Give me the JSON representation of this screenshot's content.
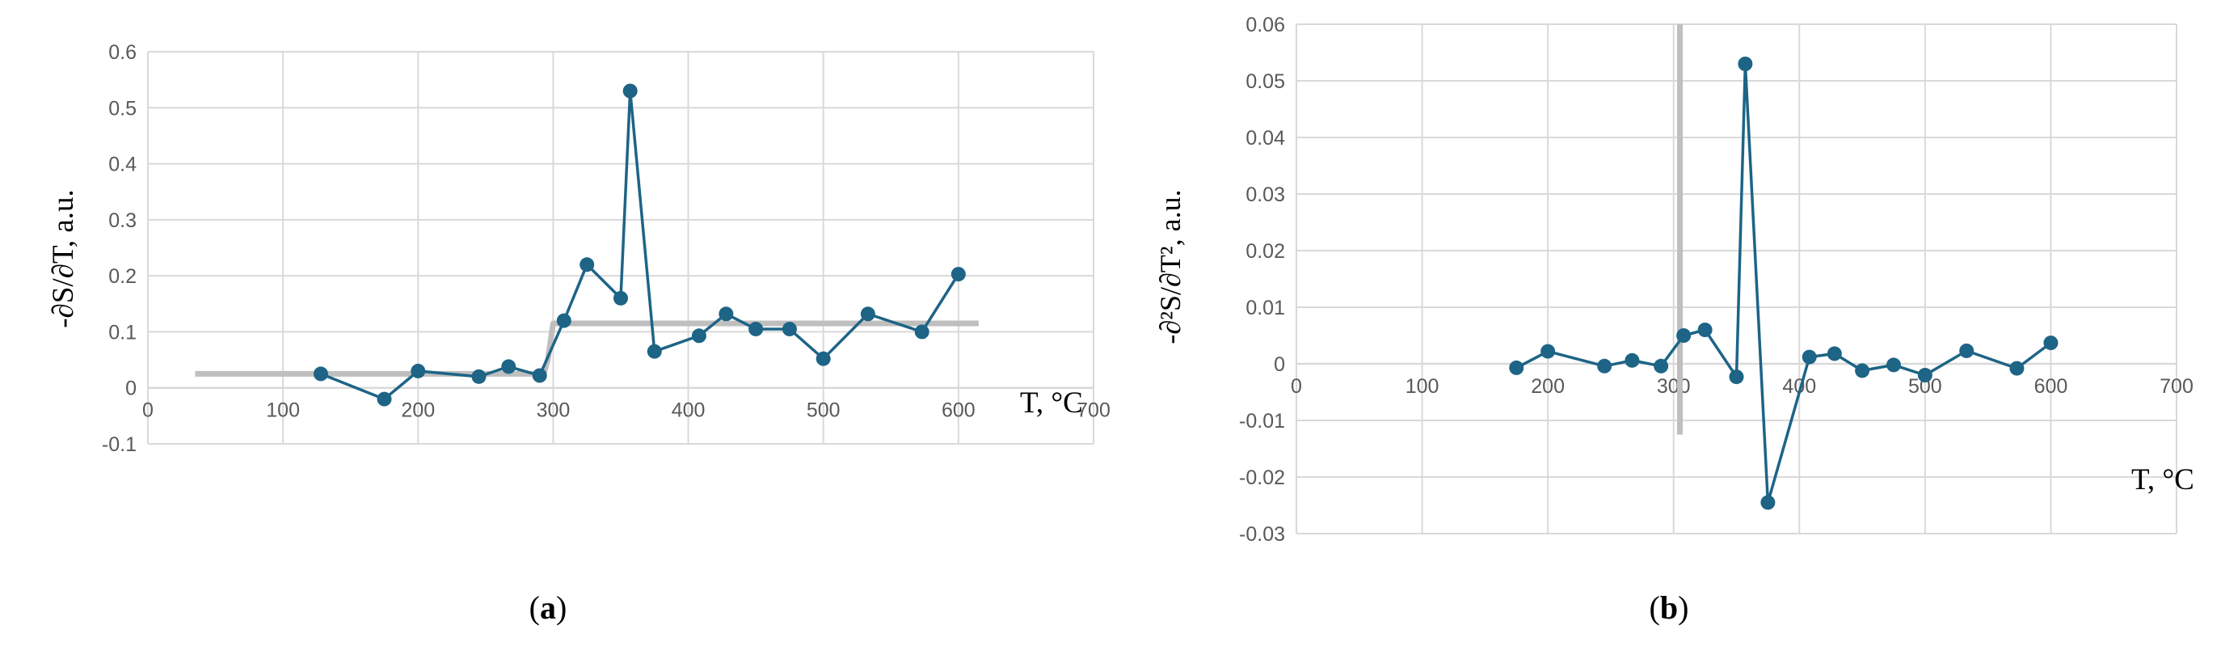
{
  "panels": [
    {
      "label_open": "(",
      "label_letter": "a",
      "label_close": ")"
    },
    {
      "label_open": "(",
      "label_letter": "b",
      "label_close": ")"
    }
  ],
  "colors": {
    "series": "#1d6486",
    "reference": "#bfbfbf",
    "grid": "#d9d9d9"
  },
  "chart_data": [
    {
      "type": "line",
      "xlim": [
        0,
        700
      ],
      "ylim": [
        -0.1,
        0.6
      ],
      "xticks": [
        "0",
        "100",
        "200",
        "300",
        "400",
        "500",
        "600",
        "700"
      ],
      "yticks": [
        "-0.1",
        "0",
        "0.1",
        "0.2",
        "0.3",
        "0.4",
        "0.5",
        "0.6"
      ],
      "ylabel": "-∂S/∂T, a.u.",
      "xlabel": "T, °C",
      "grid": true,
      "series": [
        {
          "x": [
            128,
            175,
            200,
            245,
            267,
            290,
            308,
            325,
            350,
            357,
            375,
            408,
            428,
            450,
            475,
            500,
            533,
            573,
            600
          ],
          "y": [
            0.025,
            -0.02,
            0.03,
            0.02,
            0.038,
            0.022,
            0.12,
            0.22,
            0.16,
            0.53,
            0.065,
            0.093,
            0.132,
            0.105,
            0.105,
            0.052,
            0.132,
            0.1,
            0.203
          ]
        }
      ],
      "reference_line": {
        "x": [
          35,
          293,
          296,
          300,
          615
        ],
        "y": [
          0.025,
          0.025,
          0.05,
          0.115,
          0.115
        ]
      }
    },
    {
      "type": "line",
      "xlim": [
        0,
        700
      ],
      "ylim": [
        -0.03,
        0.06
      ],
      "xticks": [
        "0",
        "100",
        "200",
        "300",
        "400",
        "500",
        "600",
        "700"
      ],
      "yticks": [
        "-0.03",
        "-0.02",
        "-0.01",
        "0",
        "0.01",
        "0.02",
        "0.03",
        "0.04",
        "0.05",
        "0.06"
      ],
      "ylabel": "-∂²S/∂T², a.u.",
      "xlabel": "T, °C",
      "grid": true,
      "series": [
        {
          "x": [
            175,
            200,
            245,
            267,
            290,
            308,
            325,
            350,
            357,
            375,
            408,
            428,
            450,
            475,
            500,
            533,
            573,
            600
          ],
          "y": [
            -0.0007,
            0.0022,
            -0.0004,
            0.0006,
            -0.0004,
            0.005,
            0.006,
            -0.0023,
            0.053,
            -0.0245,
            0.0012,
            0.0018,
            -0.0012,
            -0.0002,
            -0.002,
            0.0023,
            -0.0008,
            0.0037
          ]
        }
      ],
      "reference_line": {
        "x": [
          305,
          305
        ],
        "y": [
          -0.0125,
          0.06
        ]
      }
    }
  ]
}
